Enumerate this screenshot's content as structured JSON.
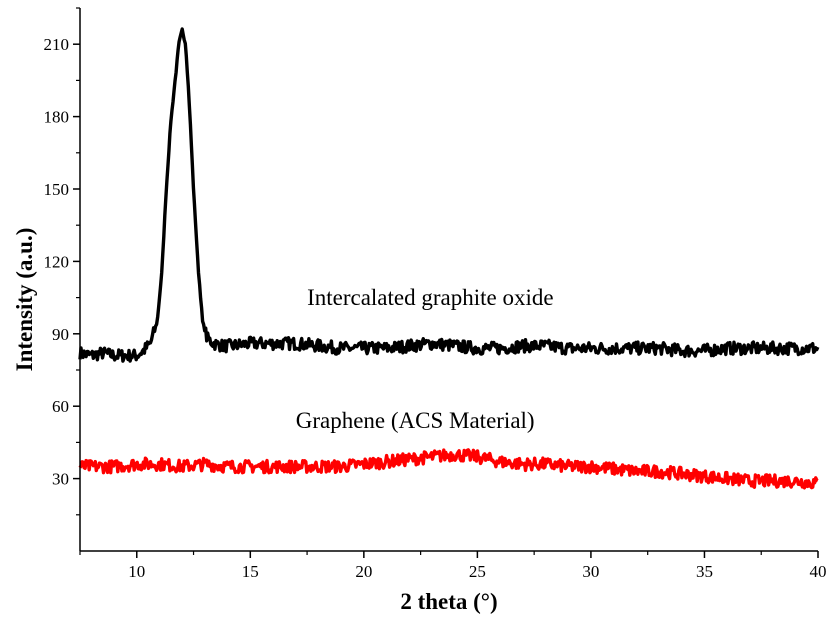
{
  "chart_data": {
    "type": "line",
    "title": "",
    "xlabel": "2 theta (°)",
    "ylabel": "Intensity (a.u.)",
    "xlim": [
      7.5,
      40
    ],
    "ylim": [
      0,
      225
    ],
    "xticks": [
      10,
      15,
      20,
      25,
      30,
      35,
      40
    ],
    "yticks": [
      30,
      60,
      90,
      120,
      150,
      180,
      210
    ],
    "grid": false,
    "legend": "none",
    "annotations": [
      {
        "text": "Intercalated graphite oxide",
        "x": 17.5,
        "y": 102
      },
      {
        "text": "Graphene (ACS Material)",
        "x": 17.0,
        "y": 51
      }
    ],
    "series": [
      {
        "color": "#000000",
        "x": [
          7.5,
          8.0,
          8.5,
          9.0,
          9.5,
          10.0,
          10.3,
          10.6,
          10.9,
          11.1,
          11.3,
          11.5,
          11.7,
          11.85,
          12.0,
          12.15,
          12.3,
          12.5,
          12.7,
          12.9,
          13.1,
          13.4,
          13.8,
          14.2,
          15.0,
          16.0,
          17.0,
          18.0,
          19.0,
          20.0,
          21.0,
          22.0,
          23.0,
          24.0,
          25.0,
          26.0,
          27.0,
          28.0,
          29.0,
          30.0,
          31.0,
          32.0,
          33.0,
          34.0,
          35.0,
          36.0,
          37.0,
          38.0,
          39.0,
          40.0
        ],
        "y": [
          82,
          81,
          82,
          81,
          81,
          81,
          83,
          86,
          95,
          115,
          150,
          178,
          196,
          210,
          216,
          210,
          188,
          150,
          118,
          95,
          88,
          86,
          85,
          85,
          86,
          86,
          86,
          85,
          84,
          84,
          84,
          85,
          86,
          85,
          84,
          84,
          85,
          85,
          84,
          84,
          84,
          84,
          84,
          83,
          83,
          84,
          84,
          84,
          84,
          84
        ]
      },
      {
        "color": "#ff0000",
        "x": [
          7.5,
          8.0,
          9.0,
          10.0,
          11.0,
          12.0,
          13.0,
          14.0,
          15.0,
          16.0,
          17.0,
          18.0,
          19.0,
          20.0,
          21.0,
          22.0,
          23.0,
          24.0,
          25.0,
          26.0,
          27.0,
          28.0,
          29.0,
          30.0,
          31.0,
          32.0,
          33.0,
          34.0,
          35.0,
          36.0,
          37.0,
          38.0,
          39.0,
          40.0
        ],
        "y": [
          35,
          35,
          35,
          36,
          36,
          35,
          36,
          35,
          35,
          35,
          35,
          35,
          35,
          36,
          37,
          38,
          39,
          40,
          39,
          37,
          36,
          36,
          35,
          35,
          34,
          33,
          33,
          32,
          31,
          30,
          29,
          29,
          29,
          28
        ]
      }
    ]
  }
}
